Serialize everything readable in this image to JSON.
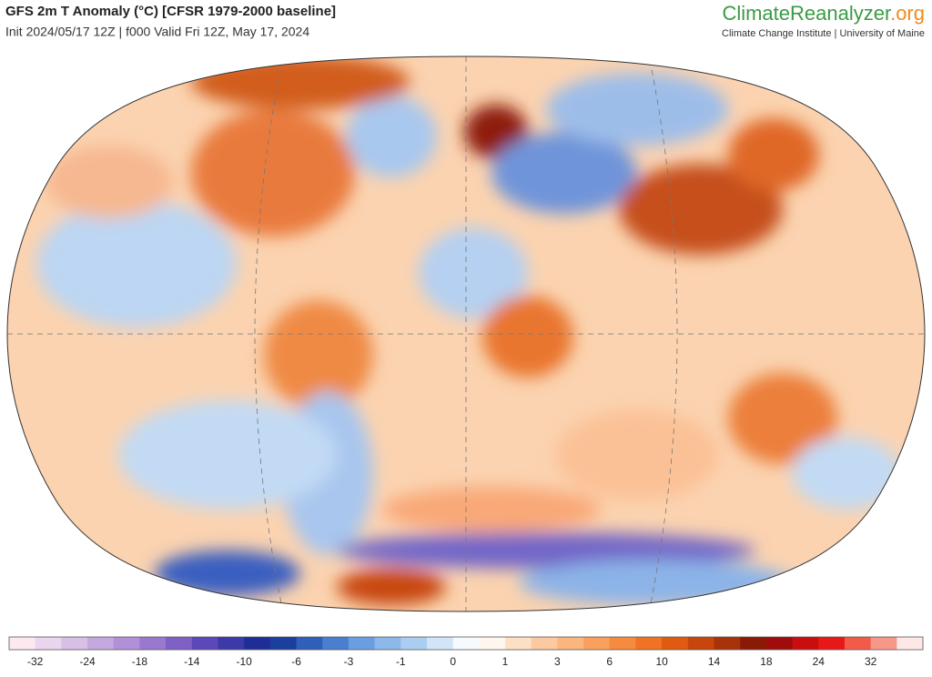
{
  "header": {
    "title": "GFS 2m T Anomaly (°C) [CFSR 1979-2000 baseline]",
    "subtitle": "Init 2024/05/17 12Z | f000 Valid Fri 12Z, May 17, 2024",
    "brand": {
      "name": "ClimateReanalyzer",
      "suffix": ".org"
    },
    "affiliation": "Climate Change Institute | University of Maine"
  },
  "colorbar": {
    "labels": [
      -32,
      -24,
      -18,
      -14,
      -10,
      -6,
      -3,
      -1,
      0,
      1,
      3,
      6,
      10,
      14,
      18,
      24,
      32
    ],
    "colors": [
      "#fde8f0",
      "#e9d5ee",
      "#d7bfe6",
      "#c5a8df",
      "#b290d8",
      "#9a78d0",
      "#7e60c6",
      "#5c48b8",
      "#3b3aa8",
      "#1f2e96",
      "#1a3f9e",
      "#2f5fb8",
      "#4a7fd0",
      "#6a9ee0",
      "#8cb8ea",
      "#abcdf2",
      "#d2e4f8",
      "#f6f9fd",
      "#fff7ef",
      "#fde0c4",
      "#fcc9a0",
      "#fbb57e",
      "#f9a05d",
      "#f68a3e",
      "#f07222",
      "#e05a12",
      "#c8460c",
      "#a8320a",
      "#8a1a06",
      "#a00c0c",
      "#c80e0e",
      "#e81818",
      "#f25a4a",
      "#f7978a",
      "#fde8e6"
    ]
  }
}
